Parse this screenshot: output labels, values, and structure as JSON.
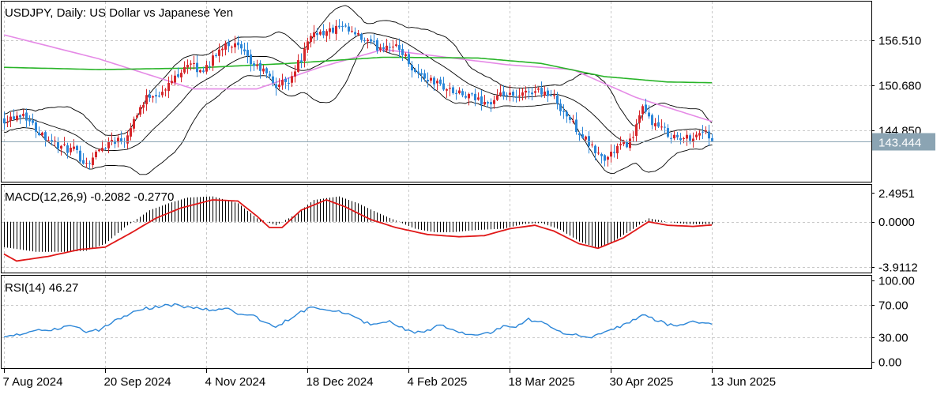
{
  "chart_data": [
    {
      "type": "candlestick",
      "title": "USDJPY, Daily:  US Dollar vs Japanese Yen",
      "symbol": "USDJPY",
      "timeframe": "Daily",
      "description": "US Dollar vs Japanese Yen",
      "y_ticks": [
        "156.510",
        "150.680",
        "144.850"
      ],
      "y_tick_values": [
        156.51,
        150.68,
        144.85
      ],
      "ylim": [
        138.2,
        161.5
      ],
      "current_price": 143.444,
      "current_price_label": "143.444",
      "x_ticks": [
        "7 Aug 2024",
        "20 Sep 2024",
        "4 Nov 2024",
        "18 Dec 2024",
        "4 Feb 2025",
        "18 Mar 2025",
        "30 Apr 2025",
        "13 Jun 2025"
      ],
      "x_tick_index": [
        0,
        32,
        64,
        96,
        128,
        160,
        192,
        224
      ],
      "close_anchors": [
        [
          0,
          146.3
        ],
        [
          6,
          147.1
        ],
        [
          10,
          145.0
        ],
        [
          14,
          143.8
        ],
        [
          18,
          142.6
        ],
        [
          22,
          142.2
        ],
        [
          26,
          140.5
        ],
        [
          30,
          142.3
        ],
        [
          34,
          143.6
        ],
        [
          38,
          143.7
        ],
        [
          42,
          147.2
        ],
        [
          46,
          149.5
        ],
        [
          50,
          149.6
        ],
        [
          54,
          151.8
        ],
        [
          58,
          153.6
        ],
        [
          62,
          152.4
        ],
        [
          66,
          154.0
        ],
        [
          70,
          156.3
        ],
        [
          74,
          155.6
        ],
        [
          78,
          153.5
        ],
        [
          82,
          152.5
        ],
        [
          86,
          150.6
        ],
        [
          90,
          151.4
        ],
        [
          94,
          154.2
        ],
        [
          98,
          157.6
        ],
        [
          102,
          157.5
        ],
        [
          106,
          158.1
        ],
        [
          110,
          157.4
        ],
        [
          114,
          156.4
        ],
        [
          118,
          155.6
        ],
        [
          122,
          156.0
        ],
        [
          126,
          155.0
        ],
        [
          130,
          152.4
        ],
        [
          134,
          151.5
        ],
        [
          138,
          150.7
        ],
        [
          142,
          149.8
        ],
        [
          146,
          149.2
        ],
        [
          150,
          148.8
        ],
        [
          154,
          148.3
        ],
        [
          158,
          149.5
        ],
        [
          162,
          148.9
        ],
        [
          166,
          149.9
        ],
        [
          170,
          150.0
        ],
        [
          174,
          149.0
        ],
        [
          178,
          146.7
        ],
        [
          182,
          144.6
        ],
        [
          186,
          142.5
        ],
        [
          190,
          141.0
        ],
        [
          194,
          142.6
        ],
        [
          198,
          143.4
        ],
        [
          202,
          147.5
        ],
        [
          206,
          145.5
        ],
        [
          210,
          144.5
        ],
        [
          214,
          143.6
        ],
        [
          218,
          144.1
        ],
        [
          222,
          144.9
        ],
        [
          224,
          143.44
        ]
      ],
      "bollinger_bands": {
        "period": 20
      },
      "moving_averages": [
        {
          "color": "#e58ae6",
          "anchors": [
            [
              0,
              157.2
            ],
            [
              30,
              154.1
            ],
            [
              60,
              150.2
            ],
            [
              80,
              150.2
            ],
            [
              100,
              153.0
            ],
            [
              120,
              155.3
            ],
            [
              140,
              154.3
            ],
            [
              160,
              153.3
            ],
            [
              180,
              152.7
            ],
            [
              200,
              149.1
            ],
            [
              224,
              146.0
            ]
          ]
        },
        {
          "color": "#28b428",
          "anchors": [
            [
              0,
              153.0
            ],
            [
              30,
              152.7
            ],
            [
              60,
              152.9
            ],
            [
              90,
              153.5
            ],
            [
              120,
              154.3
            ],
            [
              150,
              154.2
            ],
            [
              170,
              153.5
            ],
            [
              190,
              151.8
            ],
            [
              210,
              151.1
            ],
            [
              224,
              151.0
            ]
          ]
        }
      ],
      "colors": {
        "up": "#d6262a",
        "down": "#2b86d8",
        "bands": "#000000",
        "price_line": "#8ba4b3"
      }
    },
    {
      "type": "macd",
      "label": "MACD(12,26,9) -0.2082 -0.2770",
      "params": "12,26,9",
      "macd_value": -0.2082,
      "signal_value": -0.277,
      "y_ticks": [
        "2.4951",
        "0.0000",
        "-3.9112"
      ],
      "y_tick_values": [
        2.4951,
        0.0,
        -3.9112
      ],
      "ylim": [
        -4.4,
        3.2
      ],
      "macd_anchors": [
        [
          0,
          -2.2
        ],
        [
          10,
          -2.6
        ],
        [
          20,
          -2.6
        ],
        [
          26,
          -2.5
        ],
        [
          32,
          -1.9
        ],
        [
          38,
          -0.5
        ],
        [
          46,
          1.0
        ],
        [
          52,
          1.6
        ],
        [
          58,
          2.1
        ],
        [
          66,
          2.2
        ],
        [
          74,
          1.6
        ],
        [
          80,
          0.3
        ],
        [
          86,
          -0.3
        ],
        [
          92,
          0.6
        ],
        [
          98,
          1.9
        ],
        [
          106,
          2.2
        ],
        [
          112,
          1.6
        ],
        [
          118,
          0.8
        ],
        [
          124,
          0.1
        ],
        [
          130,
          -0.6
        ],
        [
          136,
          -0.9
        ],
        [
          142,
          -0.9
        ],
        [
          150,
          -0.7
        ],
        [
          158,
          -0.6
        ],
        [
          164,
          -0.2
        ],
        [
          170,
          -0.1
        ],
        [
          176,
          -0.7
        ],
        [
          182,
          -1.7
        ],
        [
          188,
          -2.3
        ],
        [
          192,
          -1.8
        ],
        [
          198,
          -0.8
        ],
        [
          204,
          0.3
        ],
        [
          210,
          0.0
        ],
        [
          216,
          -0.2
        ],
        [
          222,
          -0.2
        ],
        [
          224,
          -0.21
        ]
      ],
      "signal_anchors": [
        [
          0,
          -2.8
        ],
        [
          4,
          -3.4
        ],
        [
          14,
          -3.0
        ],
        [
          24,
          -2.4
        ],
        [
          32,
          -2.2
        ],
        [
          40,
          -1.0
        ],
        [
          48,
          0.3
        ],
        [
          56,
          1.2
        ],
        [
          66,
          1.9
        ],
        [
          74,
          1.8
        ],
        [
          80,
          0.5
        ],
        [
          84,
          -0.5
        ],
        [
          88,
          -0.5
        ],
        [
          94,
          1.0
        ],
        [
          102,
          1.9
        ],
        [
          108,
          1.3
        ],
        [
          116,
          0.2
        ],
        [
          124,
          -0.5
        ],
        [
          134,
          -1.1
        ],
        [
          144,
          -1.3
        ],
        [
          152,
          -1.2
        ],
        [
          160,
          -0.6
        ],
        [
          168,
          -0.3
        ],
        [
          174,
          -0.8
        ],
        [
          182,
          -1.9
        ],
        [
          188,
          -2.3
        ],
        [
          196,
          -1.4
        ],
        [
          204,
          0.0
        ],
        [
          210,
          -0.3
        ],
        [
          218,
          -0.4
        ],
        [
          224,
          -0.28
        ]
      ],
      "colors": {
        "histogram": "#000000",
        "signal": "#e01818"
      }
    },
    {
      "type": "line",
      "label": "RSI(14) 46.27",
      "period": 14,
      "value": 46.27,
      "y_ticks": [
        "100.00",
        "70.00",
        "30.00",
        "0.00"
      ],
      "y_tick_values": [
        100,
        70,
        30,
        0
      ],
      "ylim": [
        -8,
        106
      ],
      "rsi_anchors": [
        [
          0,
          30
        ],
        [
          6,
          34
        ],
        [
          10,
          40
        ],
        [
          14,
          37
        ],
        [
          18,
          42
        ],
        [
          22,
          44
        ],
        [
          26,
          37
        ],
        [
          30,
          39
        ],
        [
          34,
          48
        ],
        [
          38,
          55
        ],
        [
          42,
          64
        ],
        [
          46,
          66
        ],
        [
          50,
          69
        ],
        [
          54,
          70
        ],
        [
          58,
          67
        ],
        [
          62,
          66
        ],
        [
          66,
          63
        ],
        [
          70,
          66
        ],
        [
          74,
          60
        ],
        [
          78,
          58
        ],
        [
          82,
          50
        ],
        [
          86,
          42
        ],
        [
          90,
          52
        ],
        [
          94,
          61
        ],
        [
          98,
          68
        ],
        [
          102,
          65
        ],
        [
          106,
          62
        ],
        [
          110,
          58
        ],
        [
          114,
          48
        ],
        [
          118,
          46
        ],
        [
          122,
          49
        ],
        [
          126,
          42
        ],
        [
          130,
          35
        ],
        [
          134,
          38
        ],
        [
          138,
          46
        ],
        [
          142,
          39
        ],
        [
          146,
          35
        ],
        [
          150,
          34
        ],
        [
          154,
          36
        ],
        [
          158,
          43
        ],
        [
          162,
          44
        ],
        [
          166,
          52
        ],
        [
          170,
          49
        ],
        [
          174,
          42
        ],
        [
          178,
          34
        ],
        [
          182,
          33
        ],
        [
          186,
          30
        ],
        [
          190,
          35
        ],
        [
          194,
          42
        ],
        [
          198,
          48
        ],
        [
          202,
          58
        ],
        [
          206,
          52
        ],
        [
          210,
          46
        ],
        [
          214,
          45
        ],
        [
          218,
          49
        ],
        [
          222,
          48
        ],
        [
          224,
          46.27
        ]
      ],
      "colors": {
        "line": "#2b86d8"
      }
    }
  ]
}
